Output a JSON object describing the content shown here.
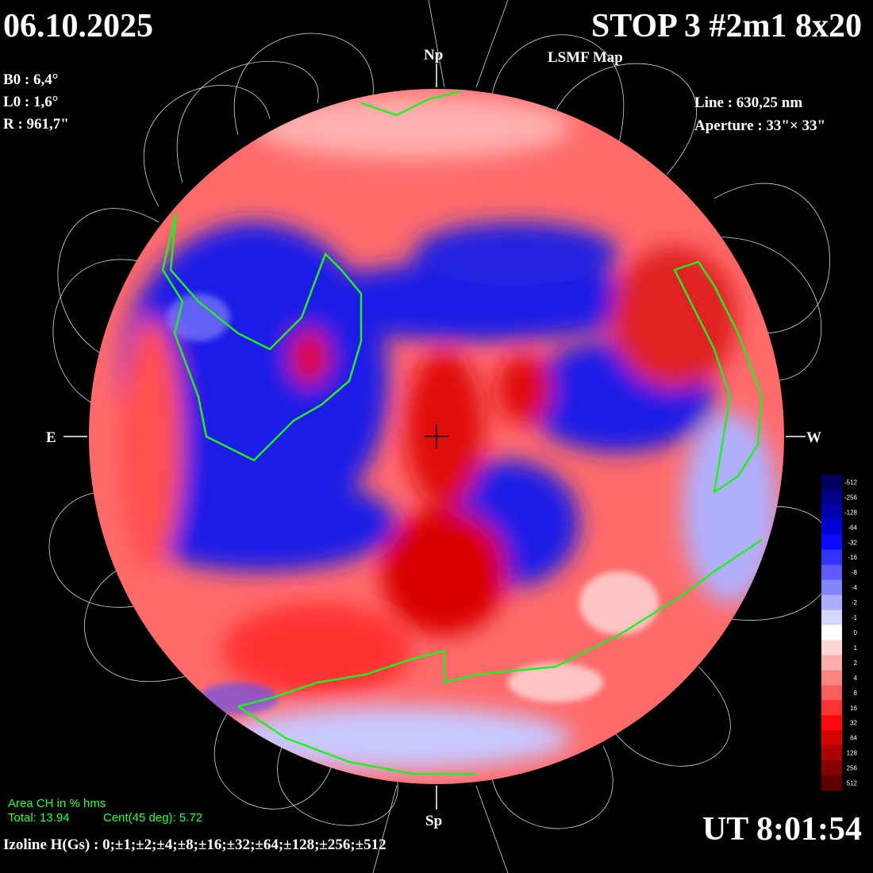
{
  "header": {
    "date": "06.10.2025",
    "title": "STOP 3 #2m1 8x20",
    "subtitle": "LSMF  Map"
  },
  "params": [
    "B0 : 6,4°",
    "L0 : 1,6°",
    "R  : 961,7\""
  ],
  "instrument": [
    "Line :  630,25 nm",
    "Aperture : 33\"× 33\""
  ],
  "directions": {
    "north": "Np",
    "south": "Sp",
    "east": "E",
    "west": "W"
  },
  "colorbar": {
    "labels": [
      "-512",
      "-256",
      "-128",
      "-64",
      "-32",
      "-16",
      "-8",
      "-4",
      "-2",
      "-1",
      "0",
      "1",
      "2",
      "4",
      "8",
      "16",
      "32",
      "64",
      "128",
      "256",
      "512"
    ]
  },
  "coronal_holes": {
    "title": "Area CH in % hms",
    "total": "Total: 13.94",
    "central": "Cent(45 deg): 5.72"
  },
  "time": "UT 8:01:54",
  "isolines": "Izoline H(Gs) : 0;±1;±2;±4;±8;±16;±32;±64;±128;±256;±512"
}
